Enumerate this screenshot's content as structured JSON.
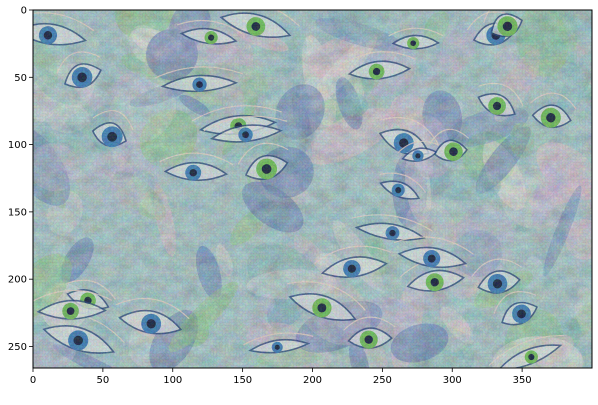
{
  "chart_data": {
    "type": "heatmap",
    "description_kind": "image",
    "xlim": [
      0,
      400
    ],
    "ylim": [
      266,
      0
    ],
    "y_inverted": true,
    "xticks": [
      0,
      50,
      100,
      150,
      200,
      250,
      300,
      350
    ],
    "yticks": [
      0,
      50,
      100,
      150,
      200,
      250
    ],
    "xlabel": "",
    "ylabel": "",
    "title": "",
    "grid": false,
    "colors": {
      "teal": "#5fa8a0",
      "pink": "#e3b3b8",
      "lavender": "#b7a5c8",
      "green": "#6fbf5a",
      "blue": "#2f4f9a",
      "cream": "#eadfcf"
    }
  }
}
